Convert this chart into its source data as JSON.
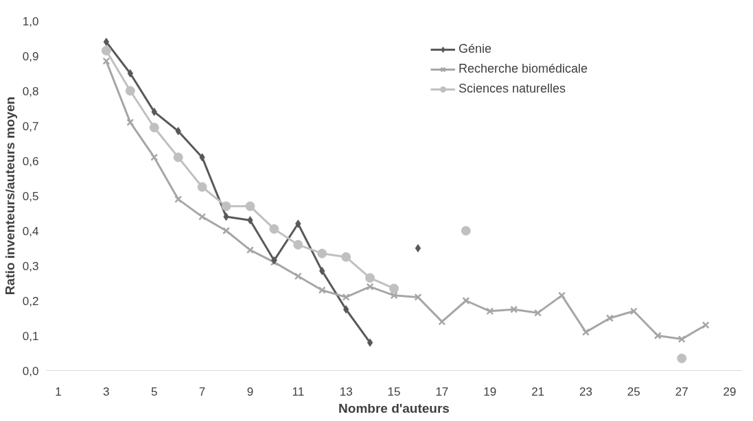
{
  "chart_data": {
    "type": "line",
    "xlabel": "Nombre d'auteurs",
    "ylabel": "Ratio inventeurs/auteurs moyen",
    "xlim": [
      0.5,
      29.5
    ],
    "xticks": [
      1,
      3,
      5,
      7,
      9,
      11,
      13,
      15,
      17,
      19,
      21,
      23,
      25,
      27,
      29
    ],
    "ylim": [
      0,
      1.0
    ],
    "yticks": [
      {
        "value": 0,
        "label": "0,0"
      },
      {
        "value": 0.1,
        "label": "0,1"
      },
      {
        "value": 0.2,
        "label": "0,2"
      },
      {
        "value": 0.3,
        "label": "0,3"
      },
      {
        "value": 0.4,
        "label": "0,4"
      },
      {
        "value": 0.5,
        "label": "0,5"
      },
      {
        "value": 0.6,
        "label": "0,6"
      },
      {
        "value": 0.7,
        "label": "0,7"
      },
      {
        "value": 0.8,
        "label": "0,8"
      },
      {
        "value": 0.9,
        "label": "0,9"
      },
      {
        "value": 1.0,
        "label": "1,0"
      }
    ],
    "grid": false,
    "legend": "top right",
    "series": [
      {
        "name": "Génie",
        "color": "#595959",
        "marker": "diamond",
        "x": [
          3,
          4,
          5,
          6,
          7,
          8,
          9,
          10,
          11,
          12,
          13,
          14,
          15,
          16
        ],
        "values": [
          0.94,
          0.85,
          0.74,
          0.685,
          0.61,
          0.44,
          0.43,
          0.315,
          0.42,
          0.285,
          0.175,
          0.08,
          null,
          0.35
        ]
      },
      {
        "name": "Recherche biomédicale",
        "color": "#a6a6a6",
        "marker": "cross",
        "x": [
          3,
          4,
          5,
          6,
          7,
          8,
          9,
          10,
          11,
          12,
          13,
          14,
          15,
          16,
          17,
          18,
          19,
          20,
          21,
          22,
          23,
          24,
          25,
          26,
          27,
          28
        ],
        "values": [
          0.885,
          0.71,
          0.61,
          0.49,
          0.44,
          0.4,
          0.345,
          0.31,
          0.27,
          0.23,
          0.21,
          0.24,
          0.215,
          0.21,
          0.14,
          0.2,
          0.17,
          0.175,
          0.165,
          0.215,
          0.11,
          0.15,
          0.17,
          0.1,
          0.09,
          0.13
        ]
      },
      {
        "name": "Sciences naturelles",
        "color": "#c0c0c0",
        "marker": "circle",
        "x": [
          3,
          4,
          5,
          6,
          7,
          8,
          9,
          10,
          11,
          12,
          13,
          14,
          15,
          16,
          17,
          18,
          19,
          20,
          21,
          22,
          23,
          24,
          25,
          26,
          27
        ],
        "values": [
          0.915,
          0.8,
          0.695,
          0.61,
          0.525,
          0.47,
          0.47,
          0.405,
          0.36,
          0.335,
          0.325,
          0.265,
          0.235,
          null,
          null,
          0.4,
          null,
          null,
          null,
          null,
          null,
          null,
          null,
          null,
          0.035
        ]
      }
    ]
  }
}
